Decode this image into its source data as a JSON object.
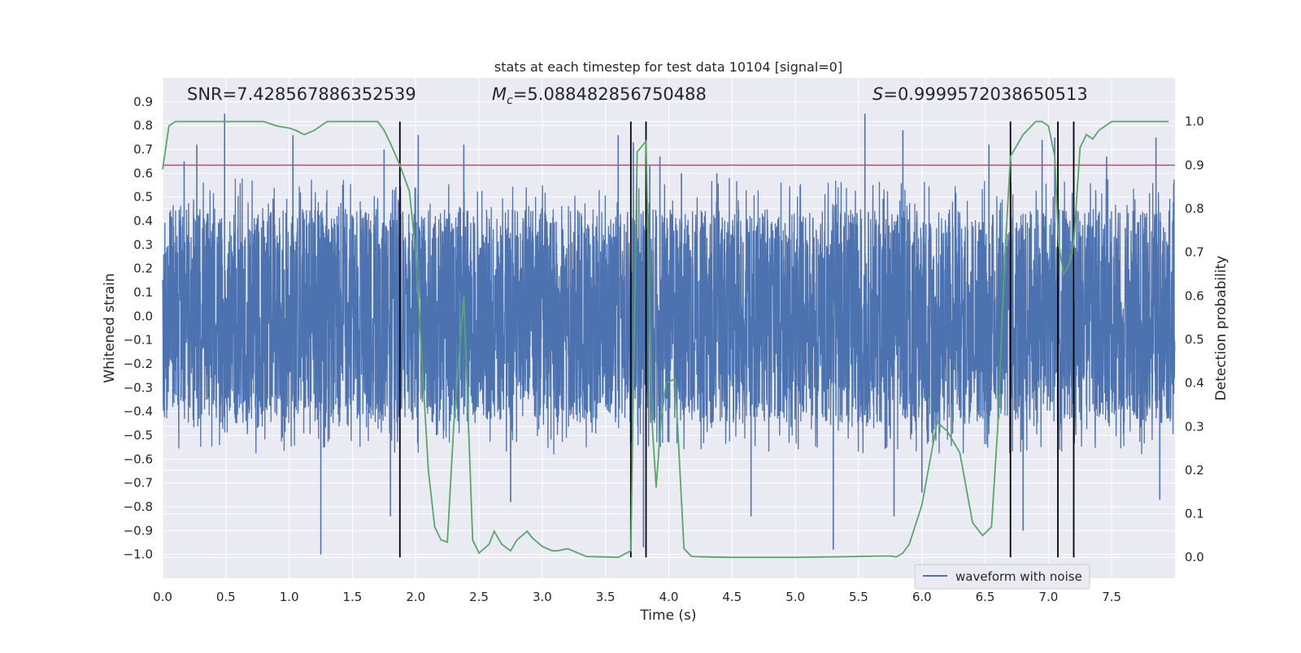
{
  "chart_data": {
    "type": "line",
    "title": "stats at each timestep for test data 10104 [signal=0]",
    "xlabel": "Time (s)",
    "ylabel": "Whitened strain",
    "ylabel_right": "Detection probability",
    "xlim": [
      0.0,
      8.0
    ],
    "ylim": [
      -1.1,
      1.0
    ],
    "ylim_right": [
      -0.048,
      1.1
    ],
    "x_ticks": [
      "0.0",
      "0.5",
      "1.0",
      "1.5",
      "2.0",
      "2.5",
      "3.0",
      "3.5",
      "4.0",
      "4.5",
      "5.0",
      "5.5",
      "6.0",
      "6.5",
      "7.0",
      "7.5"
    ],
    "y_ticks": [
      "0.9",
      "0.8",
      "0.7",
      "0.6",
      "0.5",
      "0.4",
      "0.3",
      "0.2",
      "0.1",
      "0.0",
      "−0.1",
      "−0.2",
      "−0.3",
      "−0.4",
      "−0.5",
      "−0.6",
      "−0.7",
      "−0.8",
      "−0.9",
      "−1.0"
    ],
    "y_ticks_right": [
      "1.0",
      "0.9",
      "0.8",
      "0.7",
      "0.6",
      "0.5",
      "0.4",
      "0.3",
      "0.2",
      "0.1",
      "0.0"
    ],
    "grid": true,
    "legend": {
      "placement": "lower-right",
      "entries": [
        "waveform with noise"
      ]
    },
    "annotations": {
      "snr": "SNR=7.428567886352539",
      "mc_symbol": "M",
      "mc_subscript": "c",
      "mc_value": "=5.088482856750488",
      "s_symbol": "S",
      "s_value": "=0.9999572038650513"
    },
    "threshold_probability": 0.9,
    "vertical_markers": [
      1.875,
      3.7,
      3.82,
      6.7,
      7.075,
      7.2
    ],
    "waveform": {
      "name": "waveform with noise",
      "color": "#4c72b0",
      "x_range": [
        0.0,
        7.999
      ],
      "dense_band": [
        -0.45,
        0.45
      ],
      "peaks": [
        [
          0.49,
          0.85
        ],
        [
          0.27,
          0.72
        ],
        [
          1.25,
          -1.0
        ],
        [
          1.75,
          0.7
        ],
        [
          1.8,
          -0.84
        ],
        [
          2.38,
          0.72
        ],
        [
          2.75,
          -0.78
        ],
        [
          3.6,
          0.76
        ],
        [
          3.72,
          0.73
        ],
        [
          3.8,
          -0.97
        ],
        [
          3.85,
          0.63
        ],
        [
          3.93,
          0.67
        ],
        [
          4.38,
          0.6
        ],
        [
          4.65,
          -0.84
        ],
        [
          5.3,
          -0.98
        ],
        [
          5.55,
          0.85
        ],
        [
          5.78,
          -0.84
        ],
        [
          5.85,
          0.78
        ],
        [
          6.53,
          0.72
        ],
        [
          6.8,
          -0.9
        ],
        [
          7.05,
          0.75
        ],
        [
          7.46,
          0.67
        ],
        [
          7.85,
          0.75
        ],
        [
          7.88,
          -0.77
        ],
        [
          6.0,
          -0.74
        ],
        [
          2.02,
          0.76
        ],
        [
          1.03,
          0.76
        ],
        [
          4.1,
          0.6
        ],
        [
          6.95,
          0.74
        ],
        [
          0.17,
          0.65
        ]
      ]
    },
    "probability": {
      "name": "Detection probability",
      "color": "#55a868",
      "x": [
        0.0,
        0.05,
        0.1,
        0.2,
        0.3,
        0.4,
        0.5,
        0.6,
        0.7,
        0.8,
        0.9,
        1.0,
        1.05,
        1.12,
        1.2,
        1.3,
        1.4,
        1.5,
        1.6,
        1.7,
        1.75,
        1.8,
        1.875,
        1.95,
        2.0,
        2.05,
        2.1,
        2.15,
        2.2,
        2.25,
        2.3,
        2.38,
        2.45,
        2.5,
        2.58,
        2.62,
        2.68,
        2.75,
        2.8,
        2.88,
        2.92,
        3.0,
        3.08,
        3.12,
        3.2,
        3.35,
        3.5,
        3.6,
        3.7,
        3.75,
        3.82,
        3.87,
        3.9,
        3.94,
        3.98,
        4.05,
        4.12,
        4.18,
        4.3,
        4.5,
        5.0,
        5.5,
        5.65,
        5.75,
        5.8,
        5.85,
        5.9,
        6.0,
        6.12,
        6.2,
        6.3,
        6.4,
        6.48,
        6.55,
        6.6,
        6.65,
        6.7,
        6.8,
        6.9,
        6.95,
        7.0,
        7.05,
        7.08,
        7.12,
        7.16,
        7.2,
        7.25,
        7.3,
        7.35,
        7.4,
        7.45,
        7.5,
        7.6,
        7.7,
        7.8,
        7.9,
        7.95
      ],
      "y": [
        0.89,
        0.99,
        1.0,
        1.0,
        1.0,
        1.0,
        1.0,
        1.0,
        1.0,
        1.0,
        0.99,
        0.985,
        0.98,
        0.97,
        0.98,
        1.0,
        1.0,
        1.0,
        1.0,
        1.0,
        0.98,
        0.95,
        0.9,
        0.84,
        0.7,
        0.45,
        0.2,
        0.07,
        0.04,
        0.035,
        0.3,
        0.6,
        0.04,
        0.01,
        0.03,
        0.06,
        0.03,
        0.015,
        0.04,
        0.06,
        0.045,
        0.025,
        0.015,
        0.015,
        0.02,
        0.002,
        0.001,
        0.0,
        0.015,
        0.93,
        0.955,
        0.3,
        0.16,
        0.32,
        0.4,
        0.41,
        0.02,
        0.002,
        0.001,
        0.0,
        0.0,
        0.002,
        0.003,
        0.003,
        0.001,
        0.01,
        0.03,
        0.12,
        0.31,
        0.29,
        0.24,
        0.08,
        0.05,
        0.07,
        0.3,
        0.66,
        0.92,
        0.97,
        1.0,
        1.0,
        0.99,
        0.92,
        0.72,
        0.65,
        0.67,
        0.72,
        0.94,
        0.97,
        0.96,
        0.98,
        0.99,
        1.0,
        1.0,
        1.0,
        1.0,
        1.0,
        1.0
      ]
    },
    "colors": {
      "axes_background": "#eaeaf2",
      "grid": "#ffffff",
      "threshold": "#c44e52",
      "marker": "#000000",
      "legend_background": "#eaeaf2",
      "legend_border": "#cccccc"
    }
  }
}
